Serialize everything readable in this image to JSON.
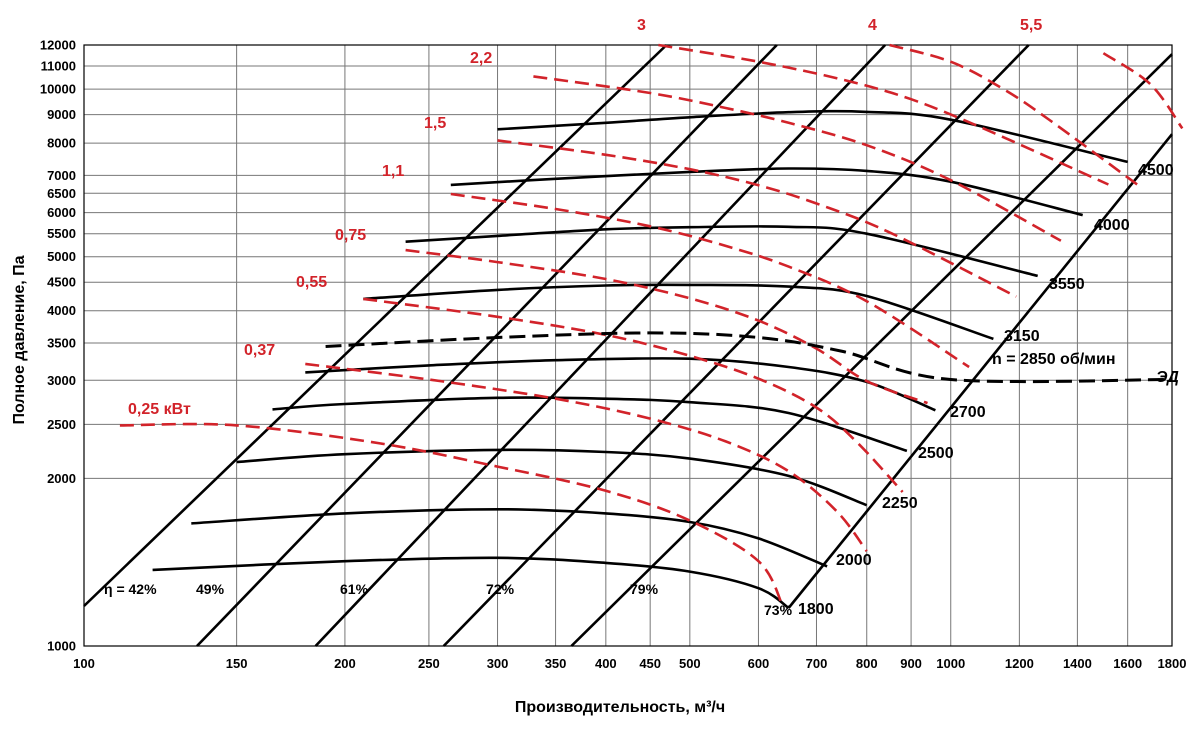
{
  "chart_data": {
    "type": "line",
    "title": "",
    "xlabel": "Производительность, м³/ч",
    "ylabel": "Полное давление, Па",
    "x_scale": "log",
    "y_scale": "log",
    "xlim": [
      100,
      1800
    ],
    "ylim": [
      1000,
      12000
    ],
    "x_ticks": [
      "100",
      "150",
      "200",
      "250",
      "300",
      "350",
      "400",
      "450",
      "500",
      "600",
      "700",
      "800",
      "900",
      "1000",
      "1200",
      "1400",
      "1600",
      "1800"
    ],
    "y_ticks": [
      "1000",
      "2000",
      "2500",
      "3000",
      "3500",
      "4000",
      "4500",
      "5000",
      "5500",
      "6000",
      "6500",
      "7000",
      "8000",
      "9000",
      "10000",
      "11000",
      "12000"
    ],
    "speed_curves": [
      {
        "name": "1800",
        "points": [
          [
            120,
            1370
          ],
          [
            200,
            1420
          ],
          [
            300,
            1440
          ],
          [
            400,
            1410
          ],
          [
            500,
            1360
          ],
          [
            600,
            1270
          ],
          [
            650,
            1170
          ]
        ]
      },
      {
        "name": "2000",
        "points": [
          [
            133,
            1660
          ],
          [
            200,
            1730
          ],
          [
            300,
            1760
          ],
          [
            400,
            1730
          ],
          [
            500,
            1670
          ],
          [
            600,
            1560
          ],
          [
            720,
            1390
          ]
        ]
      },
      {
        "name": "2250",
        "points": [
          [
            150,
            2140
          ],
          [
            200,
            2210
          ],
          [
            300,
            2250
          ],
          [
            400,
            2230
          ],
          [
            500,
            2170
          ],
          [
            650,
            2020
          ],
          [
            800,
            1790
          ]
        ]
      },
      {
        "name": "2500",
        "points": [
          [
            165,
            2660
          ],
          [
            200,
            2720
          ],
          [
            300,
            2790
          ],
          [
            400,
            2780
          ],
          [
            500,
            2740
          ],
          [
            650,
            2620
          ],
          [
            890,
            2240
          ]
        ]
      },
      {
        "name": "2700",
        "points": [
          [
            180,
            3100
          ],
          [
            250,
            3190
          ],
          [
            350,
            3260
          ],
          [
            500,
            3280
          ],
          [
            650,
            3170
          ],
          [
            800,
            2980
          ],
          [
            960,
            2650
          ]
        ]
      },
      {
        "name": "3150",
        "points": [
          [
            210,
            4200
          ],
          [
            300,
            4360
          ],
          [
            400,
            4440
          ],
          [
            500,
            4450
          ],
          [
            650,
            4420
          ],
          [
            800,
            4250
          ],
          [
            1120,
            3560
          ]
        ]
      },
      {
        "name": "3550",
        "points": [
          [
            235,
            5320
          ],
          [
            300,
            5450
          ],
          [
            400,
            5600
          ],
          [
            500,
            5650
          ],
          [
            650,
            5660
          ],
          [
            800,
            5500
          ],
          [
            1260,
            4620
          ]
        ]
      },
      {
        "name": "4000",
        "points": [
          [
            265,
            6730
          ],
          [
            350,
            6900
          ],
          [
            500,
            7100
          ],
          [
            650,
            7200
          ],
          [
            800,
            7130
          ],
          [
            1000,
            6820
          ],
          [
            1420,
            5940
          ]
        ]
      },
      {
        "name": "4500",
        "points": [
          [
            300,
            8470
          ],
          [
            400,
            8700
          ],
          [
            500,
            8900
          ],
          [
            650,
            9090
          ],
          [
            800,
            9100
          ],
          [
            1000,
            8810
          ],
          [
            1600,
            7400
          ]
        ]
      }
    ],
    "duty_line": {
      "name": "ЭД",
      "label": "n = 2850 об/мин",
      "points": [
        [
          190,
          3450
        ],
        [
          300,
          3580
        ],
        [
          450,
          3650
        ],
        [
          600,
          3580
        ],
        [
          750,
          3380
        ],
        [
          1000,
          3010
        ],
        [
          1800,
          3010
        ]
      ]
    },
    "power_curves": [
      {
        "name": "0,25 кВт",
        "points": [
          [
            110,
            2490
          ],
          [
            150,
            2490
          ],
          [
            220,
            2310
          ],
          [
            300,
            2100
          ],
          [
            400,
            1900
          ],
          [
            500,
            1680
          ],
          [
            600,
            1420
          ],
          [
            640,
            1180
          ]
        ]
      },
      {
        "name": "0,37",
        "points": [
          [
            180,
            3210
          ],
          [
            250,
            3010
          ],
          [
            350,
            2780
          ],
          [
            450,
            2560
          ],
          [
            550,
            2330
          ],
          [
            650,
            2060
          ],
          [
            740,
            1740
          ],
          [
            800,
            1480
          ]
        ]
      },
      {
        "name": "0,55",
        "points": [
          [
            210,
            4200
          ],
          [
            300,
            3900
          ],
          [
            400,
            3620
          ],
          [
            500,
            3320
          ],
          [
            600,
            3020
          ],
          [
            700,
            2680
          ],
          [
            780,
            2320
          ],
          [
            880,
            1890
          ]
        ]
      },
      {
        "name": "0,75",
        "points": [
          [
            235,
            5140
          ],
          [
            300,
            4890
          ],
          [
            400,
            4560
          ],
          [
            500,
            4210
          ],
          [
            600,
            3840
          ],
          [
            700,
            3420
          ],
          [
            800,
            2990
          ],
          [
            940,
            2730
          ]
        ]
      },
      {
        "name": "1,1",
        "points": [
          [
            265,
            6480
          ],
          [
            350,
            6090
          ],
          [
            450,
            5670
          ],
          [
            550,
            5230
          ],
          [
            650,
            4800
          ],
          [
            800,
            4160
          ],
          [
            1050,
            3170
          ]
        ]
      },
      {
        "name": "1,5",
        "points": [
          [
            300,
            8090
          ],
          [
            400,
            7620
          ],
          [
            500,
            7180
          ],
          [
            600,
            6720
          ],
          [
            700,
            6230
          ],
          [
            850,
            5530
          ],
          [
            1190,
            4240
          ]
        ]
      },
      {
        "name": "2,2",
        "points": [
          [
            330,
            10540
          ],
          [
            450,
            9840
          ],
          [
            550,
            9250
          ],
          [
            650,
            8700
          ],
          [
            800,
            7930
          ],
          [
            1000,
            6860
          ],
          [
            1340,
            5340
          ]
        ]
      },
      {
        "name": "3",
        "points": [
          [
            460,
            12000
          ],
          [
            600,
            11200
          ],
          [
            750,
            10400
          ],
          [
            900,
            9590
          ],
          [
            1100,
            8450
          ],
          [
            1520,
            6740
          ]
        ]
      },
      {
        "name": "4",
        "points": [
          [
            850,
            12000
          ],
          [
            1000,
            11200
          ],
          [
            1150,
            10000
          ],
          [
            1300,
            8800
          ],
          [
            1650,
            6700
          ]
        ]
      },
      {
        "name": "5,5",
        "points": [
          [
            1500,
            11600
          ],
          [
            1700,
            10200
          ],
          [
            1850,
            8500
          ]
        ]
      }
    ],
    "efficiency_lines": [
      {
        "name": "42%",
        "points": [
          [
            100,
            1180
          ],
          [
            470,
            12000
          ]
        ]
      },
      {
        "name": "49%",
        "points": [
          [
            135,
            1000
          ],
          [
            630,
            12000
          ]
        ]
      },
      {
        "name": "61%",
        "points": [
          [
            185,
            1000
          ],
          [
            840,
            12000
          ]
        ]
      },
      {
        "name": "72%",
        "points": [
          [
            260,
            1000
          ],
          [
            1230,
            12000
          ]
        ]
      },
      {
        "name": "79%",
        "points": [
          [
            365,
            1000
          ],
          [
            1800,
            11550
          ]
        ]
      },
      {
        "name": "73%",
        "points": [
          [
            650,
            1170
          ],
          [
            1800,
            8300
          ]
        ]
      }
    ],
    "grid": false
  },
  "labels": {
    "power": [
      "0,25 кВт",
      "0,37",
      "0,55",
      "0,75",
      "1,1",
      "1,5",
      "2,2",
      "3",
      "4",
      "5,5"
    ],
    "speeds": [
      "1800",
      "2000",
      "2250",
      "2500",
      "2700",
      "3150",
      "3550",
      "4000",
      "4500"
    ],
    "efficiency": [
      "η = 42%",
      "49%",
      "61%",
      "72%",
      "79%",
      "73%"
    ],
    "duty": "n = 2850 об/мин",
    "duty_tag": "ЭД"
  },
  "colors": {
    "power_curve": "#d2232a",
    "speed_curve": "#000000",
    "background": "#ffffff"
  }
}
